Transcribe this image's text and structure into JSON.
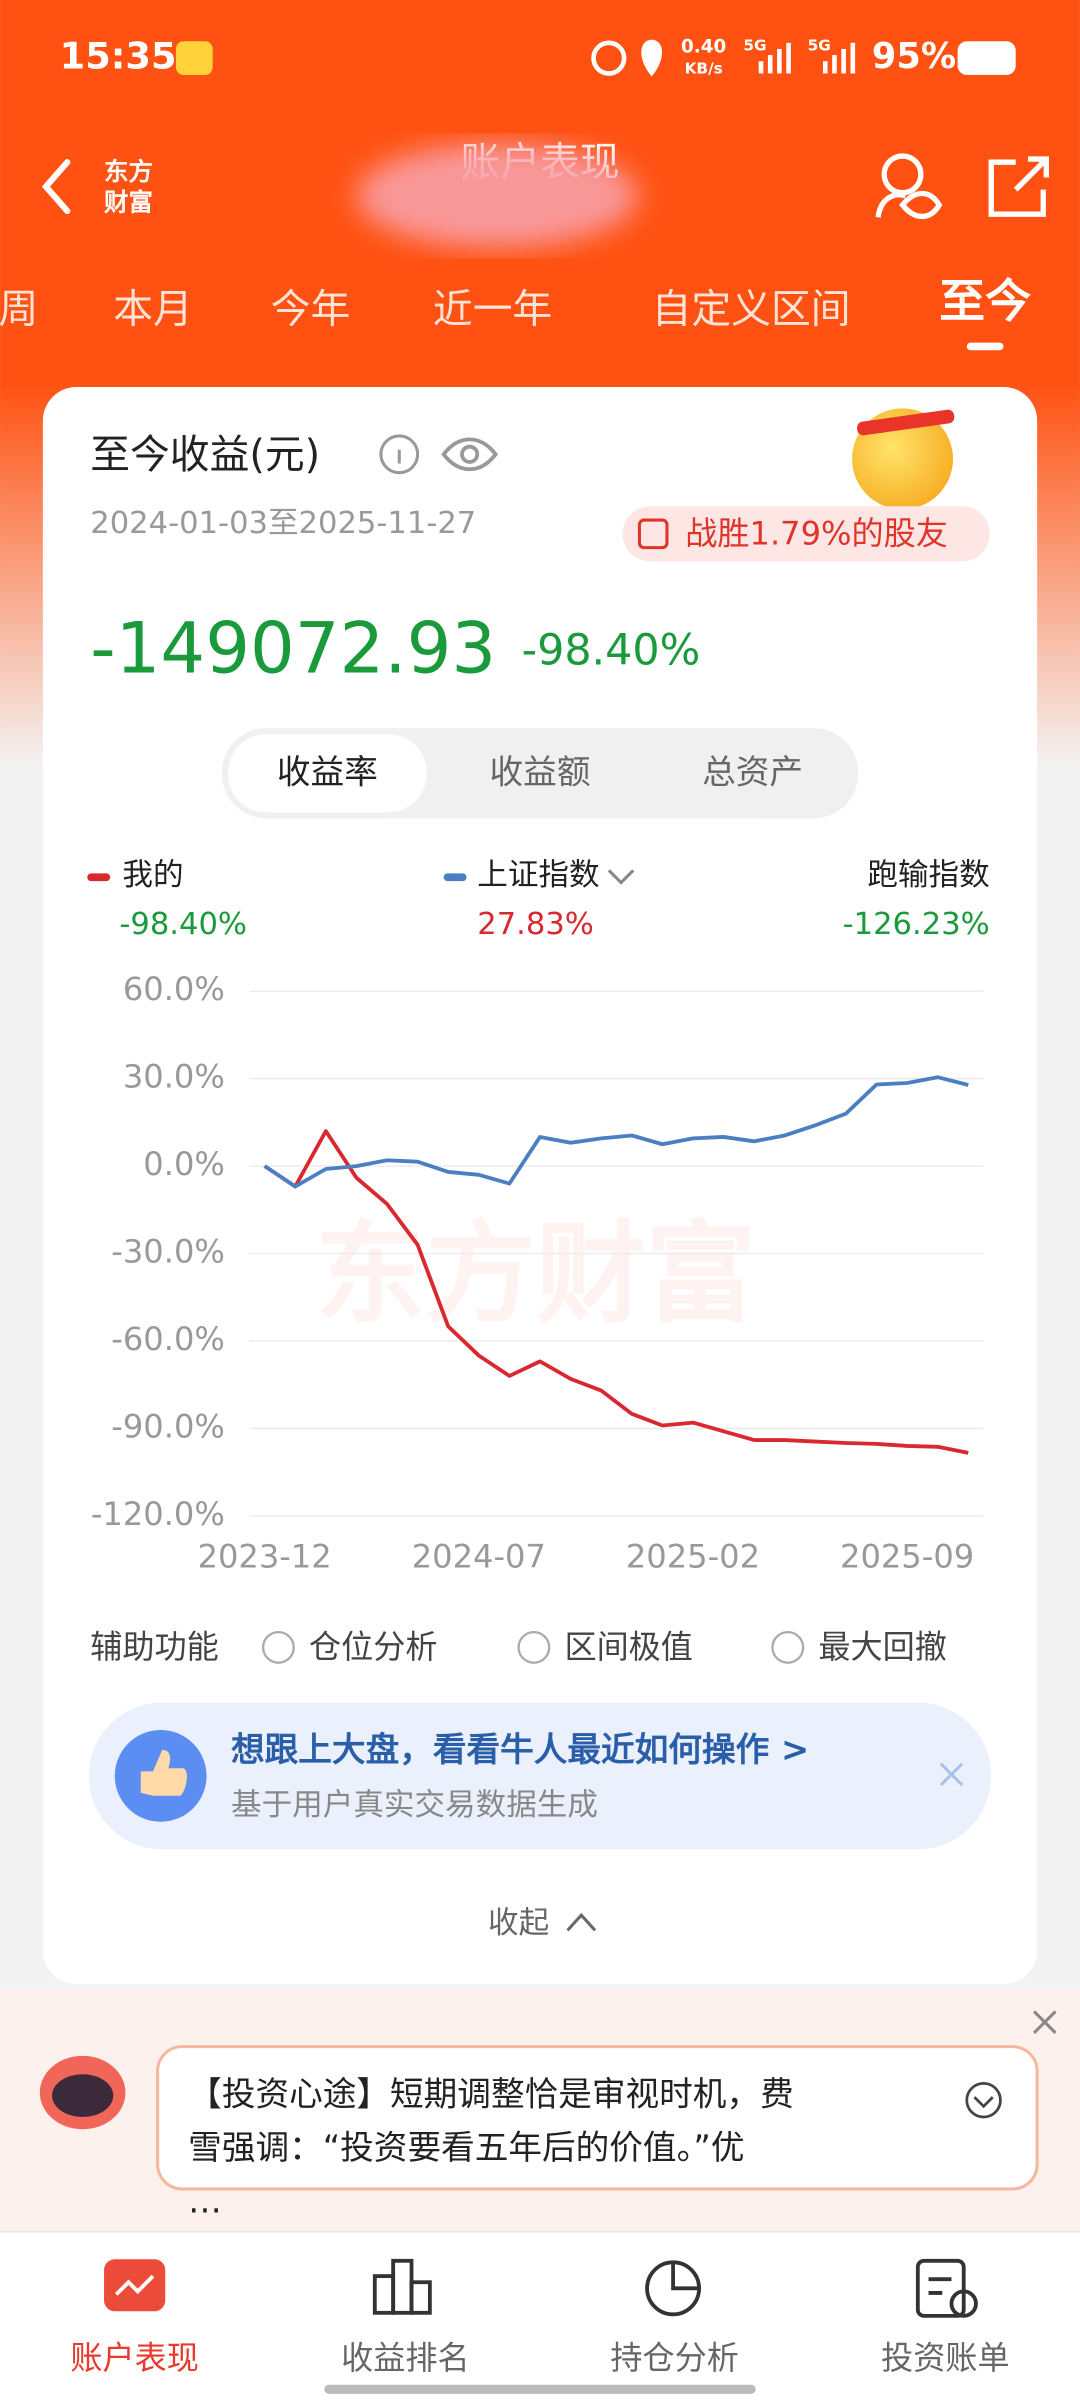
{
  "status_bar": {
    "time": "15:35",
    "speed": "0.40",
    "speed_unit": "KB/s",
    "network_1": "5G",
    "network_2": "5G",
    "battery": "95%"
  },
  "header": {
    "logo": "东方财富",
    "title": "账户表现"
  },
  "tabs": [
    "周",
    "本月",
    "今年",
    "近一年",
    "自定义区间",
    "至今"
  ],
  "card": {
    "title": "至今收益(元)",
    "date_range": "2024-01-03至2025-11-27",
    "beat_badge": "战胜1.79%的股友",
    "total_profit": "-149072.93",
    "total_return": "-98.40%",
    "segments": [
      "收益率",
      "收益额",
      "总资产"
    ],
    "legend_values": [
      "-98.40%",
      "27.83%",
      "-126.23%"
    ],
    "third_legend": "跑输指数"
  },
  "chart_data": {
    "type": "line",
    "watermark": "东方财富",
    "x": [
      "2023-12",
      "2024-01",
      "2024-02",
      "2024-03",
      "2024-04",
      "2024-05",
      "2024-06",
      "2024-07",
      "2024-08",
      "2024-09",
      "2024-10",
      "2024-11",
      "2024-12",
      "2025-01",
      "2025-02",
      "2025-03",
      "2025-04",
      "2025-05",
      "2025-06",
      "2025-07",
      "2025-08",
      "2025-09",
      "2025-10",
      "2025-11"
    ],
    "series": [
      {
        "name": "我的",
        "color": "#d9282f",
        "values": [
          0,
          -7,
          12,
          -4,
          -13,
          -27,
          -55,
          -65,
          -72,
          -67,
          -73,
          -77,
          -85,
          -89,
          -88,
          -91,
          -94,
          -94,
          -94.5,
          -95,
          -95.3,
          -96,
          -96.3,
          -98.4
        ]
      },
      {
        "name": "上证指数",
        "color": "#4a7fc1",
        "values": [
          0,
          -7,
          -1,
          0,
          2,
          1.5,
          -2,
          -3,
          -6,
          10,
          8,
          9.5,
          10.5,
          7.5,
          9.5,
          10,
          8.5,
          10.5,
          14,
          18,
          28,
          28.5,
          30.5,
          27.83
        ]
      }
    ],
    "ylim": [
      -120,
      60
    ],
    "yticks": [
      {
        "value": 60,
        "label": "60.0%"
      },
      {
        "value": 30,
        "label": "30.0%"
      },
      {
        "value": 0,
        "label": "0.0%"
      },
      {
        "value": -30,
        "label": "-30.0%"
      },
      {
        "value": -60,
        "label": "-60.0%"
      },
      {
        "value": -90,
        "label": "-90.0%"
      },
      {
        "value": -120,
        "label": "-120.0%"
      }
    ],
    "xticks": [
      "2023-12",
      "2024-07",
      "2025-02",
      "2025-09"
    ],
    "grid": true
  },
  "tools": {
    "label": "辅助功能",
    "options": [
      "仓位分析",
      "区间极值",
      "最大回撤"
    ]
  },
  "promo": {
    "title": "想跟上大盘，看看牛人最近如何操作 >",
    "subtitle": "基于用户真实交易数据生成"
  },
  "collapse": "收起",
  "news": "【投资心途】短期调整恰是审视时机，费雪强调：“投资要看五年后的价值。”优…",
  "nav": [
    "账户表现",
    "收益排名",
    "持仓分析",
    "投资账单"
  ]
}
